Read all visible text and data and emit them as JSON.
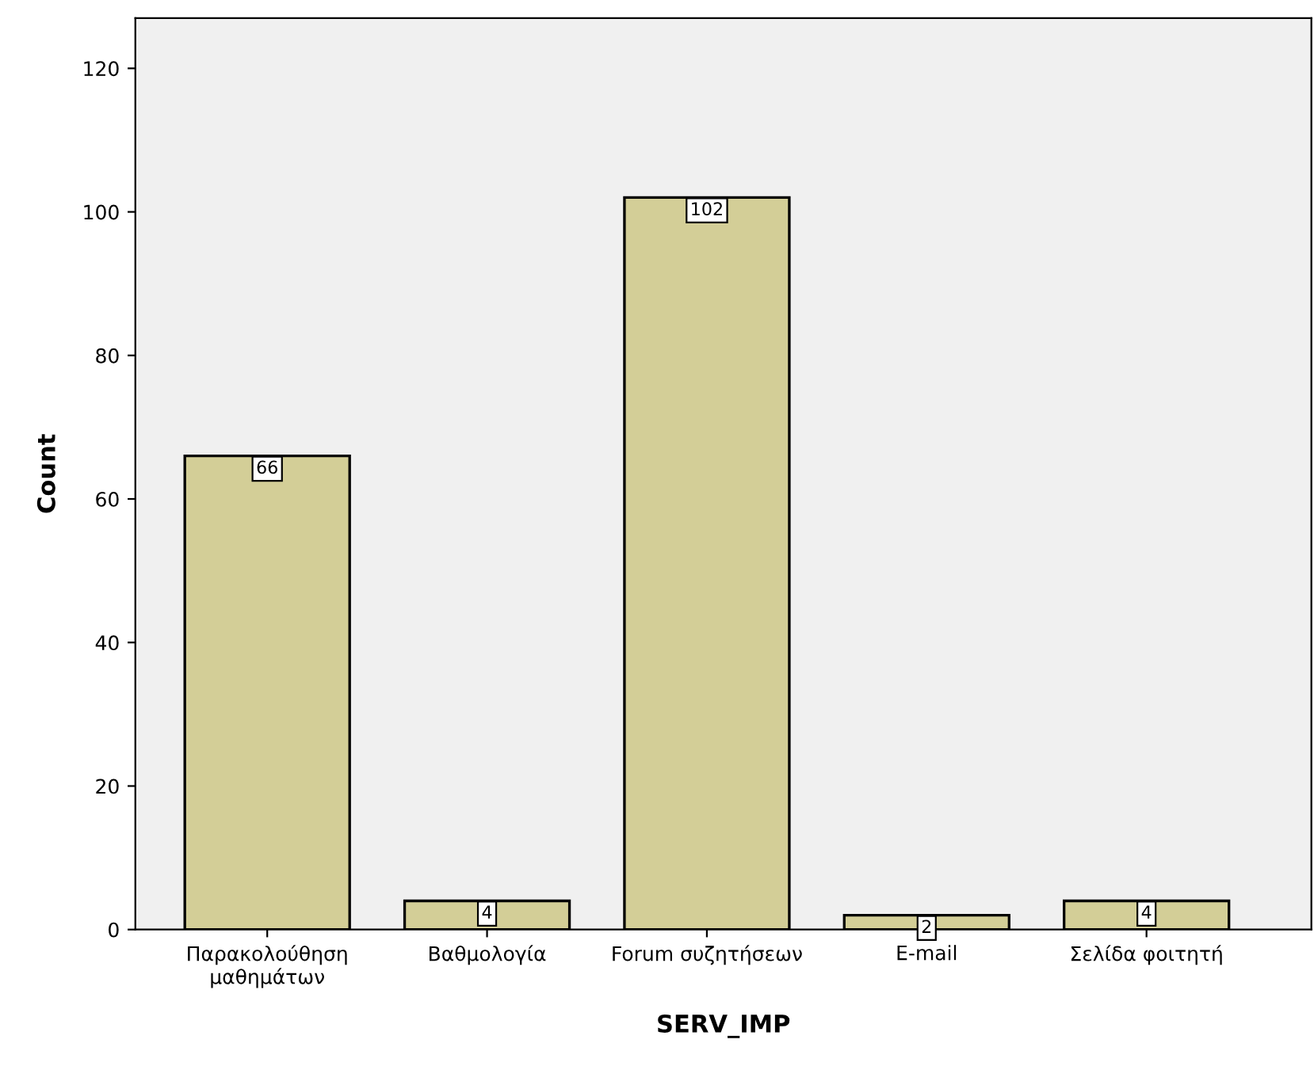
{
  "chart_data": {
    "type": "bar",
    "xlabel": "SERV_IMP",
    "ylabel": "Count",
    "categories": [
      "Παρακολούθηση\nμαθημάτων",
      "Βαθμολογία",
      "Forum συζητήσεων",
      "E-mail",
      "Σελίδα φοιτητή"
    ],
    "values": [
      66,
      4,
      102,
      2,
      4
    ],
    "color": "#d3ce97",
    "ylim": [
      0,
      127
    ],
    "yticks": [
      0,
      20,
      40,
      60,
      80,
      100,
      120
    ],
    "data_labels": true,
    "grid": false
  }
}
